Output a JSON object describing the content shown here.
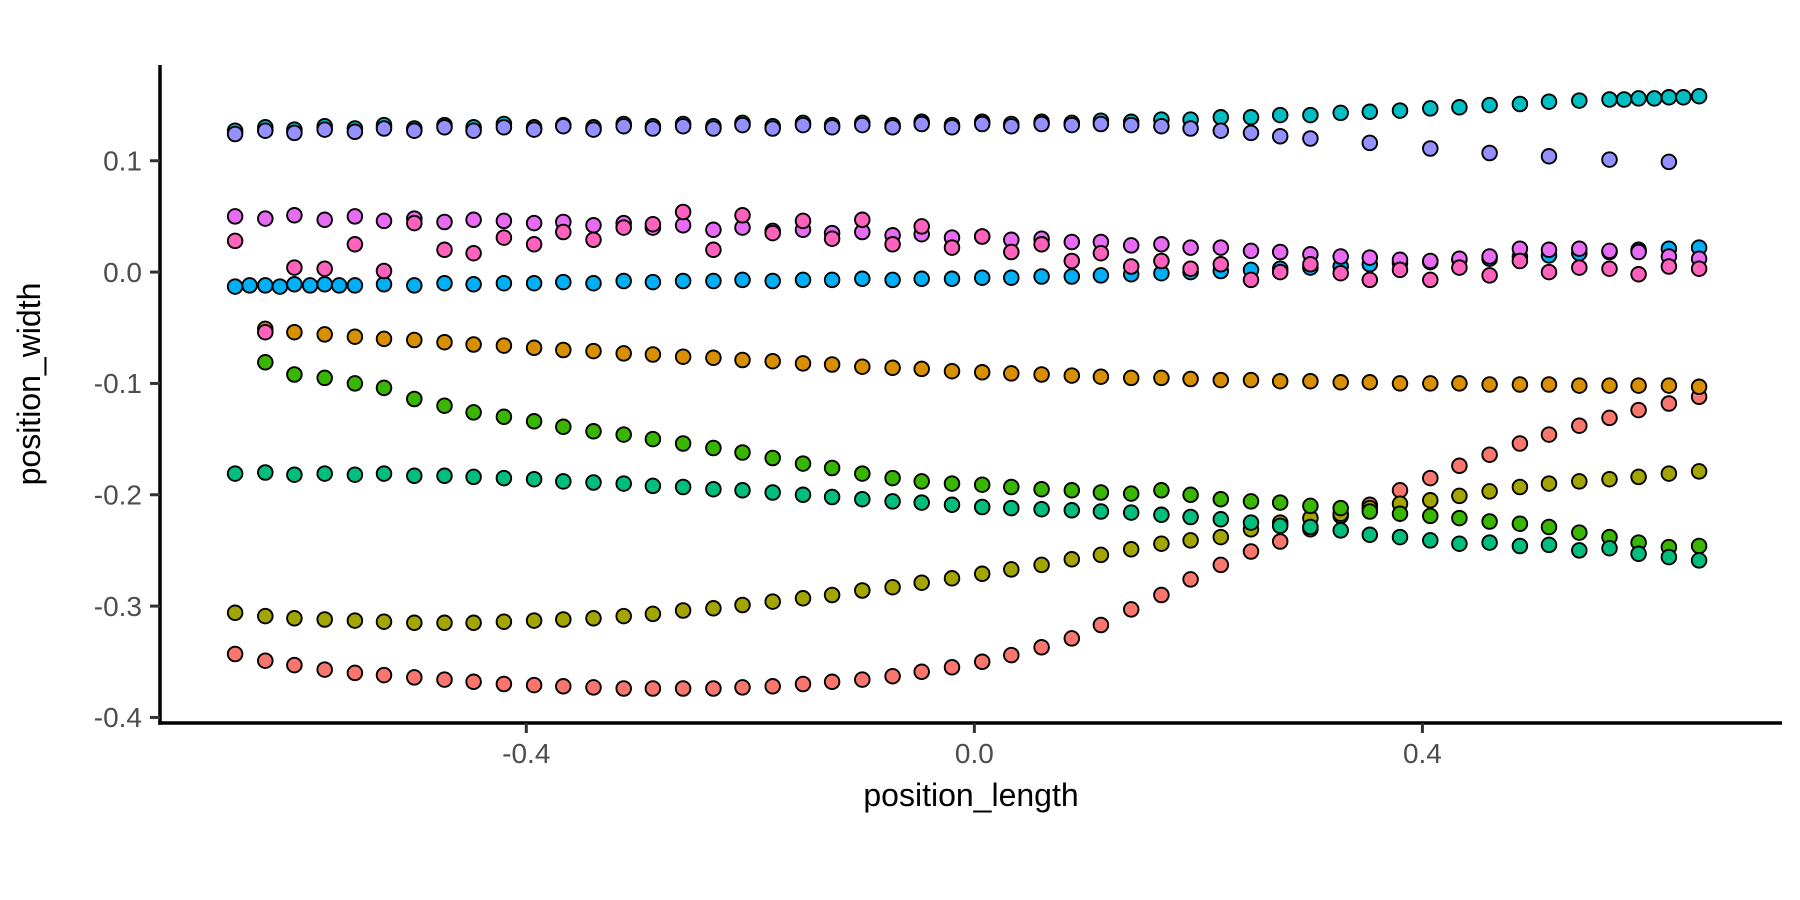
{
  "figure": {
    "xlabel": "position_length",
    "ylabel": "position_width",
    "background": "#FFFFFF"
  },
  "chart_data": {
    "type": "scatter",
    "title": "",
    "xlabel": "position_length",
    "ylabel": "position_width",
    "grid": false,
    "legend": "none",
    "xlim": [
      -0.727,
      0.721
    ],
    "ylim": [
      -0.405,
      0.186
    ],
    "x_ticks": {
      "values": [
        -0.4,
        0.0,
        0.4
      ],
      "labels": [
        "-0.4",
        "0.0",
        "0.4"
      ]
    },
    "y_ticks": {
      "values": [
        0.1,
        0.0,
        -0.1,
        -0.2,
        -0.3,
        -0.4
      ],
      "labels": [
        "0.1",
        "0.0",
        "-0.1",
        "-0.2",
        "-0.3",
        "-0.4"
      ]
    },
    "point_style": {
      "radius": 7.3,
      "stroke": "#000000",
      "stroke_width": 1.9
    },
    "axis_style": {
      "line_color": "#000000",
      "line_width": 3.5,
      "tick_color": "#333333",
      "tick_length": 10,
      "tick_width": 3,
      "tick_label_color": "#4D4D4D",
      "title_color": "#000000"
    },
    "x_grid": [
      -0.66,
      -0.633,
      -0.607,
      -0.58,
      -0.553,
      -0.527,
      -0.5,
      -0.473,
      -0.447,
      -0.42,
      -0.393,
      -0.367,
      -0.34,
      -0.313,
      -0.287,
      -0.26,
      -0.233,
      -0.207,
      -0.18,
      -0.153,
      -0.127,
      -0.1,
      -0.073,
      -0.047,
      -0.02,
      0.007,
      0.033,
      0.06,
      0.087,
      0.113,
      0.14,
      0.167,
      0.193,
      0.22,
      0.247,
      0.273,
      0.3,
      0.327,
      0.353,
      0.38,
      0.407,
      0.433,
      0.46,
      0.487,
      0.513,
      0.54,
      0.567,
      0.593,
      0.62,
      0.647
    ],
    "series": [
      {
        "name": "series-salmon",
        "color": "#F8766D",
        "y": [
          -0.343,
          -0.349,
          -0.353,
          -0.357,
          -0.36,
          -0.362,
          -0.364,
          -0.366,
          -0.368,
          -0.37,
          -0.371,
          -0.372,
          -0.373,
          -0.374,
          -0.374,
          -0.374,
          -0.374,
          -0.373,
          -0.372,
          -0.37,
          -0.368,
          -0.366,
          -0.363,
          -0.359,
          -0.355,
          -0.35,
          -0.344,
          -0.337,
          -0.329,
          -0.317,
          -0.303,
          -0.29,
          -0.276,
          -0.263,
          -0.251,
          -0.242,
          -0.231,
          -0.219,
          -0.209,
          -0.196,
          -0.185,
          -0.174,
          -0.164,
          -0.154,
          -0.146,
          -0.138,
          -0.131,
          -0.124,
          -0.118,
          -0.112
        ]
      },
      {
        "name": "series-orange",
        "color": "#D89000",
        "x_offset": 1,
        "y": [
          -0.051,
          -0.054,
          -0.056,
          -0.058,
          -0.06,
          -0.061,
          -0.063,
          -0.065,
          -0.066,
          -0.068,
          -0.07,
          -0.071,
          -0.073,
          -0.074,
          -0.076,
          -0.077,
          -0.079,
          -0.08,
          -0.082,
          -0.083,
          -0.085,
          -0.086,
          -0.087,
          -0.089,
          -0.09,
          -0.091,
          -0.092,
          -0.093,
          -0.094,
          -0.095,
          -0.095,
          -0.096,
          -0.097,
          -0.097,
          -0.098,
          -0.098,
          -0.099,
          -0.099,
          -0.1,
          -0.1,
          -0.1,
          -0.101,
          -0.101,
          -0.101,
          -0.102,
          -0.102,
          -0.102,
          -0.102,
          -0.103
        ]
      },
      {
        "name": "series-olive",
        "color": "#A3A500",
        "y": [
          -0.306,
          -0.309,
          -0.311,
          -0.312,
          -0.313,
          -0.314,
          -0.315,
          -0.315,
          -0.315,
          -0.314,
          -0.313,
          -0.312,
          -0.311,
          -0.309,
          -0.307,
          -0.304,
          -0.302,
          -0.299,
          -0.296,
          -0.293,
          -0.29,
          -0.286,
          -0.283,
          -0.279,
          -0.275,
          -0.271,
          -0.267,
          -0.263,
          -0.258,
          -0.254,
          -0.249,
          -0.244,
          -0.241,
          -0.238,
          -0.231,
          -0.225,
          -0.221,
          -0.217,
          -0.212,
          -0.208,
          -0.205,
          -0.201,
          -0.197,
          -0.193,
          -0.19,
          -0.188,
          -0.186,
          -0.184,
          -0.181,
          -0.179
        ]
      },
      {
        "name": "series-green",
        "color": "#39B600",
        "x_offset": 1,
        "y": [
          -0.081,
          -0.092,
          -0.095,
          -0.1,
          -0.104,
          -0.114,
          -0.12,
          -0.126,
          -0.13,
          -0.134,
          -0.139,
          -0.143,
          -0.146,
          -0.15,
          -0.154,
          -0.158,
          -0.162,
          -0.167,
          -0.172,
          -0.176,
          -0.181,
          -0.185,
          -0.188,
          -0.19,
          -0.191,
          -0.193,
          -0.195,
          -0.196,
          -0.198,
          -0.199,
          -0.196,
          -0.2,
          -0.204,
          -0.206,
          -0.207,
          -0.21,
          -0.212,
          -0.215,
          -0.217,
          -0.219,
          -0.221,
          -0.224,
          -0.226,
          -0.229,
          -0.234,
          -0.238,
          -0.243,
          -0.247,
          -0.246
        ]
      },
      {
        "name": "series-emerald",
        "color": "#00BF7D",
        "y": [
          -0.181,
          -0.18,
          -0.182,
          -0.181,
          -0.182,
          -0.181,
          -0.183,
          -0.183,
          -0.184,
          -0.185,
          -0.186,
          -0.188,
          -0.189,
          -0.19,
          -0.192,
          -0.193,
          -0.195,
          -0.196,
          -0.198,
          -0.2,
          -0.202,
          -0.204,
          -0.206,
          -0.207,
          -0.209,
          -0.211,
          -0.212,
          -0.213,
          -0.214,
          -0.215,
          -0.216,
          -0.218,
          -0.22,
          -0.222,
          -0.225,
          -0.228,
          -0.229,
          -0.232,
          -0.236,
          -0.238,
          -0.241,
          -0.244,
          -0.243,
          -0.246,
          -0.245,
          -0.25,
          -0.248,
          -0.253,
          -0.256,
          -0.259
        ]
      },
      {
        "name": "series-teal",
        "color": "#00BFC4",
        "x": [
          -0.66,
          -0.633,
          -0.607,
          -0.58,
          -0.553,
          -0.527,
          -0.5,
          -0.473,
          -0.447,
          -0.42,
          -0.393,
          -0.367,
          -0.34,
          -0.313,
          -0.287,
          -0.26,
          -0.233,
          -0.207,
          -0.18,
          -0.153,
          -0.127,
          -0.1,
          -0.073,
          -0.047,
          -0.02,
          0.007,
          0.033,
          0.06,
          0.087,
          0.113,
          0.14,
          0.167,
          0.193,
          0.22,
          0.247,
          0.273,
          0.3,
          0.327,
          0.353,
          0.38,
          0.407,
          0.433,
          0.46,
          0.487,
          0.513,
          0.54,
          0.567,
          0.58,
          0.593,
          0.607,
          0.62,
          0.633,
          0.647
        ],
        "y": [
          0.127,
          0.13,
          0.128,
          0.131,
          0.129,
          0.132,
          0.129,
          0.132,
          0.13,
          0.133,
          0.13,
          0.132,
          0.13,
          0.133,
          0.131,
          0.133,
          0.131,
          0.134,
          0.131,
          0.134,
          0.132,
          0.134,
          0.132,
          0.135,
          0.132,
          0.135,
          0.133,
          0.135,
          0.134,
          0.136,
          0.135,
          0.137,
          0.137,
          0.139,
          0.139,
          0.141,
          0.141,
          0.143,
          0.144,
          0.145,
          0.147,
          0.148,
          0.15,
          0.151,
          0.153,
          0.154,
          0.155,
          0.155,
          0.156,
          0.156,
          0.157,
          0.157,
          0.158
        ]
      },
      {
        "name": "series-blue",
        "color": "#00B0F6",
        "x": [
          -0.66,
          -0.647,
          -0.633,
          -0.62,
          -0.607,
          -0.593,
          -0.58,
          -0.567,
          -0.553,
          -0.527,
          -0.5,
          -0.473,
          -0.447,
          -0.42,
          -0.393,
          -0.367,
          -0.34,
          -0.313,
          -0.287,
          -0.26,
          -0.233,
          -0.207,
          -0.18,
          -0.153,
          -0.127,
          -0.1,
          -0.073,
          -0.047,
          -0.02,
          0.007,
          0.033,
          0.06,
          0.087,
          0.113,
          0.14,
          0.167,
          0.193,
          0.22,
          0.247,
          0.273,
          0.3,
          0.327,
          0.353,
          0.38,
          0.407,
          0.433,
          0.46,
          0.487,
          0.513,
          0.54,
          0.567,
          0.593,
          0.62,
          0.647
        ],
        "y": [
          -0.013,
          -0.012,
          -0.012,
          -0.013,
          -0.011,
          -0.012,
          -0.011,
          -0.012,
          -0.012,
          -0.011,
          -0.012,
          -0.01,
          -0.011,
          -0.01,
          -0.01,
          -0.009,
          -0.01,
          -0.008,
          -0.009,
          -0.008,
          -0.008,
          -0.007,
          -0.008,
          -0.007,
          -0.007,
          -0.006,
          -0.007,
          -0.006,
          -0.006,
          -0.005,
          -0.005,
          -0.004,
          -0.004,
          -0.003,
          -0.002,
          -0.001,
          0.0,
          0.001,
          0.002,
          0.003,
          0.004,
          0.005,
          0.007,
          0.008,
          0.009,
          0.011,
          0.012,
          0.014,
          0.015,
          0.017,
          0.018,
          0.02,
          0.021,
          0.022
        ]
      },
      {
        "name": "series-purple",
        "color": "#9590FF",
        "x": [
          -0.66,
          -0.633,
          -0.607,
          -0.58,
          -0.553,
          -0.527,
          -0.5,
          -0.473,
          -0.447,
          -0.42,
          -0.393,
          -0.367,
          -0.34,
          -0.313,
          -0.287,
          -0.26,
          -0.233,
          -0.207,
          -0.18,
          -0.153,
          -0.127,
          -0.1,
          -0.073,
          -0.047,
          -0.02,
          0.007,
          0.033,
          0.06,
          0.087,
          0.113,
          0.14,
          0.167,
          0.193,
          0.22,
          0.247,
          0.273,
          0.3,
          0.353,
          0.407,
          0.46,
          0.513,
          0.567,
          0.62
        ],
        "y": [
          0.124,
          0.127,
          0.125,
          0.128,
          0.126,
          0.129,
          0.127,
          0.13,
          0.127,
          0.13,
          0.128,
          0.131,
          0.128,
          0.131,
          0.129,
          0.131,
          0.129,
          0.132,
          0.129,
          0.132,
          0.13,
          0.132,
          0.13,
          0.133,
          0.13,
          0.133,
          0.131,
          0.133,
          0.132,
          0.133,
          0.132,
          0.131,
          0.129,
          0.127,
          0.125,
          0.122,
          0.12,
          0.116,
          0.111,
          0.107,
          0.104,
          0.101,
          0.099
        ]
      },
      {
        "name": "series-orchid",
        "color": "#E76BF3",
        "y": [
          0.05,
          0.048,
          0.051,
          0.047,
          0.05,
          0.046,
          0.048,
          0.045,
          0.047,
          0.046,
          0.044,
          0.045,
          0.042,
          0.044,
          0.04,
          0.042,
          0.038,
          0.04,
          0.037,
          0.038,
          0.035,
          0.036,
          0.033,
          0.034,
          0.031,
          0.032,
          0.029,
          0.03,
          0.027,
          0.027,
          0.024,
          0.025,
          0.022,
          0.022,
          0.019,
          0.018,
          0.016,
          0.014,
          0.013,
          0.011,
          0.01,
          0.012,
          0.014,
          0.021,
          0.02,
          0.021,
          0.019,
          0.018,
          0.014,
          0.012
        ]
      },
      {
        "name": "series-pink",
        "color": "#FF62BC",
        "y": [
          0.028,
          -0.054,
          0.004,
          0.003,
          0.025,
          0.001,
          0.044,
          0.02,
          0.017,
          0.031,
          0.025,
          0.036,
          0.029,
          0.04,
          0.043,
          0.054,
          0.02,
          0.051,
          0.035,
          0.046,
          0.03,
          0.047,
          0.025,
          0.041,
          0.022,
          0.032,
          0.018,
          0.025,
          0.01,
          0.017,
          0.005,
          0.01,
          0.003,
          0.007,
          -0.007,
          0.0,
          0.007,
          -0.001,
          -0.007,
          0.002,
          -0.007,
          0.004,
          -0.003,
          0.01,
          0.0,
          0.004,
          0.003,
          -0.002,
          0.005,
          0.003
        ]
      }
    ]
  }
}
